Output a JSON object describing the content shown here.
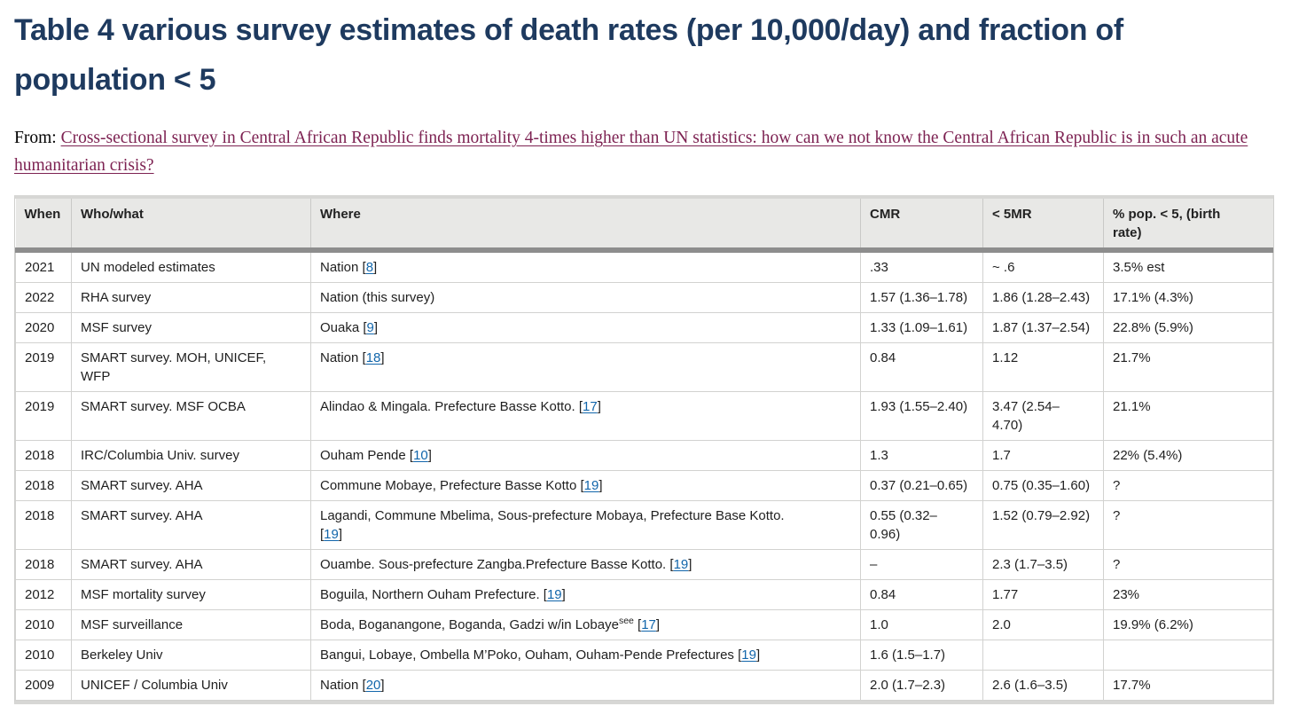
{
  "header": {
    "title": "Table 4 various survey estimates of death rates (per 10,000/day) and fraction of population < 5",
    "from_label": "From:",
    "article_link_text": "Cross-sectional survey in Central African Republic finds mortality 4-times higher than UN statistics: how can we not know the Central African Republic is in such an acute humanitarian crisis?"
  },
  "colors": {
    "title_text": "#1e3a5f",
    "article_link": "#7d2252",
    "citation_link": "#1266ab",
    "header_bg": "#e8e8e6",
    "header_divider": "#8d8d8d",
    "cell_border": "#d2d2d0",
    "body_text": "#1f1f1f"
  },
  "table": {
    "columns": [
      {
        "key": "when",
        "label": "When"
      },
      {
        "key": "who",
        "label": "Who/what"
      },
      {
        "key": "where",
        "label": "Where"
      },
      {
        "key": "cmr",
        "label": "CMR"
      },
      {
        "key": "u5mr",
        "label": "< 5MR"
      },
      {
        "key": "pop_under5",
        "label": "% pop. < 5, (birth\nrate)"
      }
    ],
    "rows": [
      {
        "when": "2021",
        "who": "UN modeled estimates",
        "where": {
          "pre": "Nation",
          "sup": null,
          "ref": "8"
        },
        "cmr": ".33",
        "u5mr": "~ .6",
        "pop_under5": "3.5% est"
      },
      {
        "when": "2022",
        "who": "RHA survey",
        "where": {
          "pre": "Nation (this survey)",
          "sup": null,
          "ref": null
        },
        "cmr": "1.57 (1.36–1.78)",
        "u5mr": "1.86 (1.28–2.43)",
        "pop_under5": "17.1% (4.3%)"
      },
      {
        "when": "2020",
        "who": "MSF survey",
        "where": {
          "pre": "Ouaka",
          "sup": null,
          "ref": "9"
        },
        "cmr": "1.33 (1.09–1.61)",
        "u5mr": "1.87 (1.37–2.54)",
        "pop_under5": "22.8% (5.9%)"
      },
      {
        "when": "2019",
        "who": "SMART survey. MOH, UNICEF,\nWFP",
        "where": {
          "pre": "Nation",
          "sup": null,
          "ref": "18"
        },
        "cmr": "0.84",
        "u5mr": "1.12",
        "pop_under5": "21.7%"
      },
      {
        "when": "2019",
        "who": "SMART survey. MSF OCBA",
        "where": {
          "pre": "Alindao & Mingala. Prefecture Basse Kotto.",
          "sup": null,
          "ref": "17"
        },
        "cmr": "1.93 (1.55–2.40)",
        "u5mr": "3.47 (2.54–\n4.70)",
        "pop_under5": "21.1%"
      },
      {
        "when": "2018",
        "who": "IRC/Columbia Univ. survey",
        "where": {
          "pre": "Ouham Pende",
          "sup": null,
          "ref": "10"
        },
        "cmr": "1.3",
        "u5mr": "1.7",
        "pop_under5": "22% (5.4%)"
      },
      {
        "when": "2018",
        "who": "SMART survey. AHA",
        "where": {
          "pre": "Commune Mobaye, Prefecture Basse Kotto",
          "sup": null,
          "ref": "19"
        },
        "cmr": "0.37 (0.21–0.65)",
        "u5mr": "0.75 (0.35–1.60)",
        "pop_under5": "?"
      },
      {
        "when": "2018",
        "who": "SMART survey. AHA",
        "where": {
          "pre": "Lagandi, Commune Mbelima, Sous-prefecture Mobaya, Prefecture Base Kotto.\n",
          "sup": null,
          "ref": "19"
        },
        "cmr": "0.55 (0.32–\n0.96)",
        "u5mr": "1.52 (0.79–2.92)",
        "pop_under5": "?"
      },
      {
        "when": "2018",
        "who": "SMART survey. AHA",
        "where": {
          "pre": "Ouambe. Sous-prefecture Zangba.Prefecture Basse Kotto.",
          "sup": null,
          "ref": "19"
        },
        "cmr": "–",
        "u5mr": "2.3 (1.7–3.5)",
        "pop_under5": "?"
      },
      {
        "when": "2012",
        "who": "MSF mortality survey",
        "where": {
          "pre": "Boguila, Northern Ouham Prefecture.",
          "sup": null,
          "ref": "19"
        },
        "cmr": "0.84",
        "u5mr": "1.77",
        "pop_under5": "23%"
      },
      {
        "when": "2010",
        "who": "MSF surveillance",
        "where": {
          "pre": "Boda, Boganangone, Boganda, Gadzi w/in Lobaye",
          "sup": "see",
          "ref": "17"
        },
        "cmr": "1.0",
        "u5mr": "2.0",
        "pop_under5": "19.9% (6.2%)"
      },
      {
        "when": "2010",
        "who": "Berkeley Univ",
        "where": {
          "pre": "Bangui, Lobaye, Ombella M’Poko, Ouham, Ouham-Pende Prefectures",
          "sup": null,
          "ref": "19"
        },
        "cmr": "1.6 (1.5–1.7)",
        "u5mr": "",
        "pop_under5": ""
      },
      {
        "when": "2009",
        "who": "UNICEF / Columbia Univ",
        "where": {
          "pre": "Nation",
          "sup": null,
          "ref": "20"
        },
        "cmr": "2.0 (1.7–2.3)",
        "u5mr": "2.6 (1.6–3.5)",
        "pop_under5": "17.7%"
      }
    ]
  }
}
